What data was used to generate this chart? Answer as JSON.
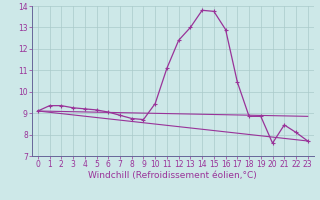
{
  "xlabel": "Windchill (Refroidissement éolien,°C)",
  "background_color": "#cde8e8",
  "grid_color": "#aacaca",
  "line_color": "#993399",
  "spine_color": "#666699",
  "xlim": [
    -0.5,
    23.5
  ],
  "ylim": [
    7,
    14
  ],
  "yticks": [
    7,
    8,
    9,
    10,
    11,
    12,
    13,
    14
  ],
  "xticks": [
    0,
    1,
    2,
    3,
    4,
    5,
    6,
    7,
    8,
    9,
    10,
    11,
    12,
    13,
    14,
    15,
    16,
    17,
    18,
    19,
    20,
    21,
    22,
    23
  ],
  "curve1_x": [
    0,
    1,
    2,
    3,
    4,
    5,
    6,
    7,
    8,
    9,
    10,
    11,
    12,
    13,
    14,
    15,
    16,
    17,
    18,
    19,
    20,
    21,
    22,
    23
  ],
  "curve1_y": [
    9.1,
    9.35,
    9.35,
    9.25,
    9.2,
    9.15,
    9.05,
    8.9,
    8.75,
    8.7,
    9.45,
    11.1,
    12.4,
    13.0,
    13.8,
    13.75,
    12.9,
    10.45,
    8.85,
    8.85,
    7.6,
    8.45,
    8.1,
    7.7
  ],
  "curve2_x": [
    0,
    23
  ],
  "curve2_y": [
    9.1,
    8.85
  ],
  "curve3_x": [
    0,
    23
  ],
  "curve3_y": [
    9.1,
    7.7
  ],
  "fontsize_ticks": 5.5,
  "fontsize_label": 6.5
}
